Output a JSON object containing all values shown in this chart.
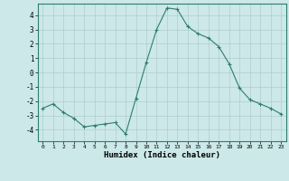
{
  "x": [
    0,
    1,
    2,
    3,
    4,
    5,
    6,
    7,
    8,
    9,
    10,
    11,
    12,
    13,
    14,
    15,
    16,
    17,
    18,
    19,
    20,
    21,
    22,
    23
  ],
  "y": [
    -2.5,
    -2.2,
    -2.8,
    -3.2,
    -3.8,
    -3.7,
    -3.6,
    -3.5,
    -4.3,
    -1.8,
    0.7,
    3.0,
    4.5,
    4.4,
    3.2,
    2.7,
    2.4,
    1.8,
    0.6,
    -1.1,
    -1.9,
    -2.2,
    -2.5,
    -2.9
  ],
  "xlabel": "Humidex (Indice chaleur)",
  "ylim": [
    -4.8,
    4.8
  ],
  "xlim": [
    -0.5,
    23.5
  ],
  "yticks": [
    -4,
    -3,
    -2,
    -1,
    0,
    1,
    2,
    3,
    4
  ],
  "xticks": [
    0,
    1,
    2,
    3,
    4,
    5,
    6,
    7,
    8,
    9,
    10,
    11,
    12,
    13,
    14,
    15,
    16,
    17,
    18,
    19,
    20,
    21,
    22,
    23
  ],
  "line_color": "#2e7d6e",
  "marker_color": "#2e7d6e",
  "bg_color": "#cce8e8",
  "grid_color": "#b0cccc"
}
